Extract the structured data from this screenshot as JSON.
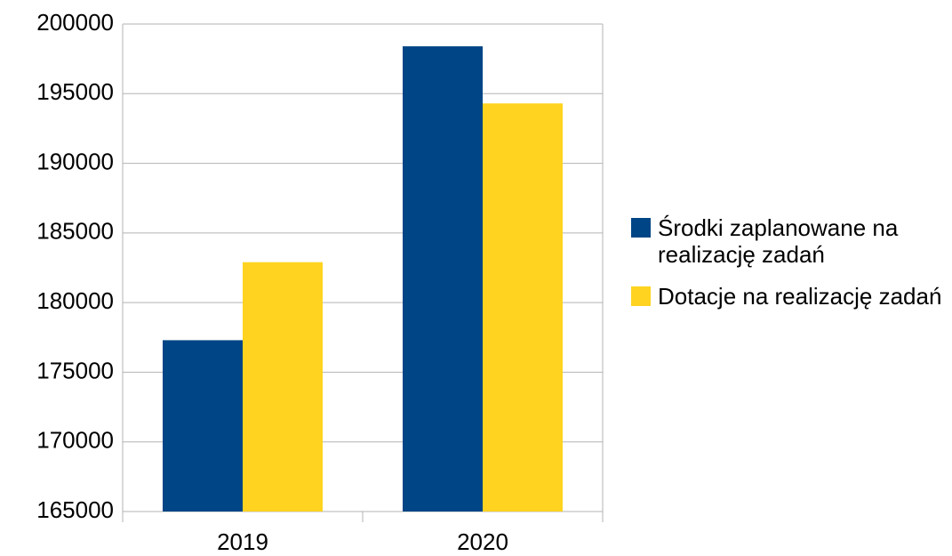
{
  "chart_data": {
    "type": "bar",
    "categories": [
      "2019",
      "2020"
    ],
    "series": [
      {
        "name": "Środki zaplanowane na realizację zadań",
        "color": "#004586",
        "values": [
          177300,
          198400
        ]
      },
      {
        "name": "Dotacje na realizację zadań",
        "color": "#ffd320",
        "values": [
          182900,
          194300
        ]
      }
    ],
    "ylim": [
      165000,
      200000
    ],
    "yticks": [
      165000,
      170000,
      175000,
      180000,
      185000,
      190000,
      195000,
      200000
    ],
    "grid": true,
    "legend": "right"
  }
}
